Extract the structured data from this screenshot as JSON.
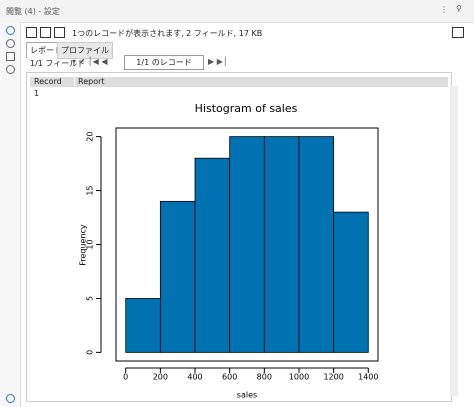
{
  "window": {
    "title": "閲覧 (4) - 設定"
  },
  "toolbar": {
    "status": "1つのレコードが表示されます, 2 フィールド, 17 KB"
  },
  "tabs": [
    "レポート",
    "プロファイル"
  ],
  "navigator": {
    "fields": "1/1 フィールド",
    "records": "1/1 のレコード"
  },
  "table": {
    "columns": [
      "Record",
      "Report"
    ],
    "rows": [
      [
        "1"
      ]
    ]
  },
  "chart_data": {
    "type": "histogram",
    "title": "Histogram of sales",
    "x_label": "sales",
    "y_label": "Frequency",
    "bins": [
      0,
      200,
      400,
      600,
      800,
      1000,
      1200,
      1400
    ],
    "values": [
      5,
      14,
      18,
      20,
      20,
      20,
      13
    ],
    "color": "#0072b2",
    "xlim": [
      -56,
      1456
    ],
    "ylim": [
      -0.8,
      20.8
    ],
    "xticks": [
      0,
      200,
      400,
      600,
      800,
      1000,
      1200,
      1400
    ],
    "yticks": [
      0,
      5,
      10,
      15,
      20
    ]
  }
}
